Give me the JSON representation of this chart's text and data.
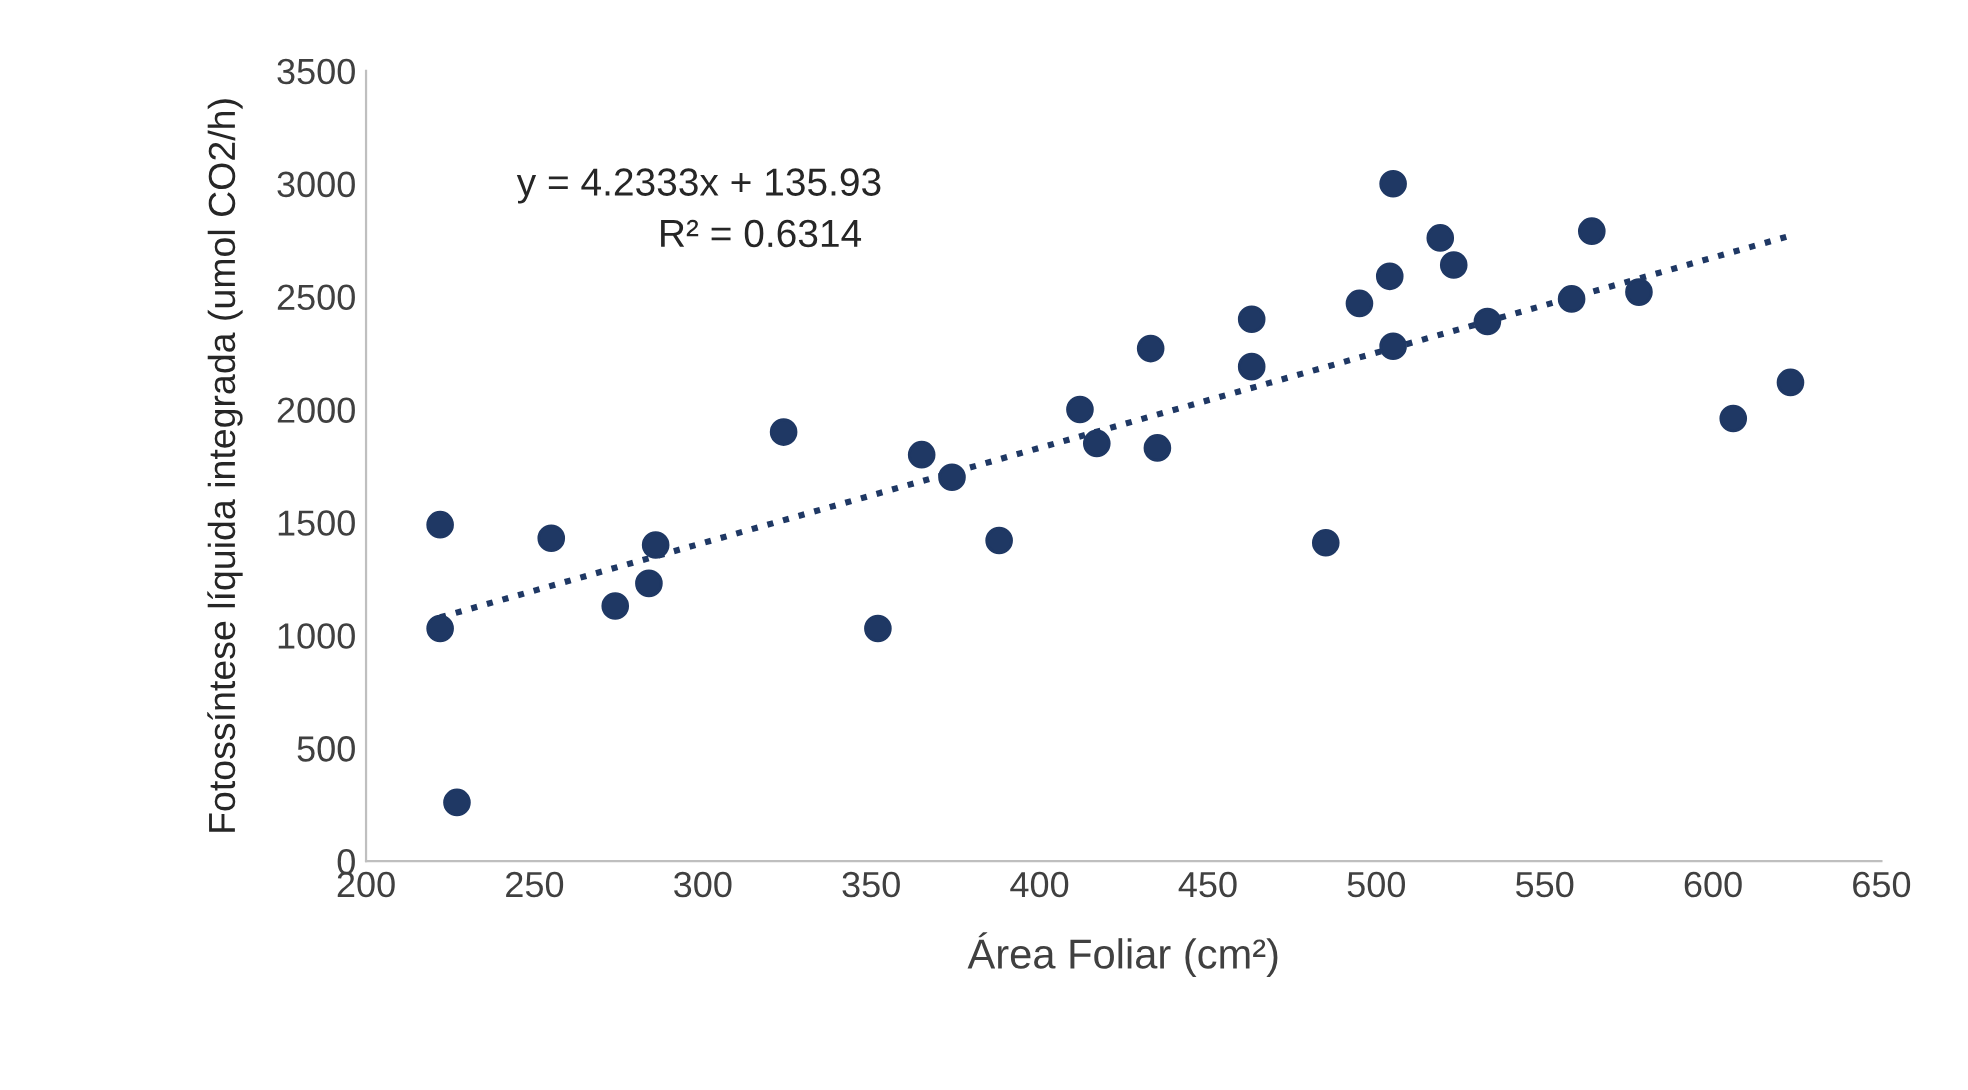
{
  "chart_data": {
    "type": "scatter",
    "xlabel": "Área Foliar (cm²)",
    "ylabel": "Fotossíntese líquida integrada (umol CO2/h)",
    "annotations": [
      "y = 4.2333x + 135.93",
      "R² = 0.6314"
    ],
    "xlim": [
      200,
      650
    ],
    "xticks": [
      200,
      250,
      300,
      350,
      400,
      450,
      500,
      550,
      600,
      650
    ],
    "ylim": [
      0,
      3500
    ],
    "yticks": [
      0,
      500,
      1000,
      1500,
      2000,
      2500,
      3000,
      3500
    ],
    "grid": false,
    "legend": false,
    "series": [
      {
        "color": "#1f3864",
        "marker": "circle",
        "x": [
          222,
          222,
          227,
          255,
          274,
          284,
          286,
          324,
          352,
          365,
          374,
          388,
          412,
          417,
          433,
          435,
          463,
          463,
          485,
          495,
          504,
          505,
          505,
          519,
          523,
          533,
          558,
          564,
          578,
          606,
          623
        ],
        "values": [
          1490,
          1030,
          260,
          1430,
          1130,
          1230,
          1400,
          1900,
          1030,
          1800,
          1700,
          1420,
          2000,
          1850,
          2270,
          1830,
          2400,
          2190,
          1410,
          2470,
          2590,
          3000,
          2280,
          2760,
          2640,
          2390,
          2490,
          2790,
          2520,
          1960,
          2120
        ]
      },
      {
        "type": "line",
        "color": "#1f3864",
        "marker": "none",
        "line_style": "dotted",
        "x": [
          222,
          623
        ],
        "values": [
          1080,
          2770
        ]
      }
    ]
  }
}
